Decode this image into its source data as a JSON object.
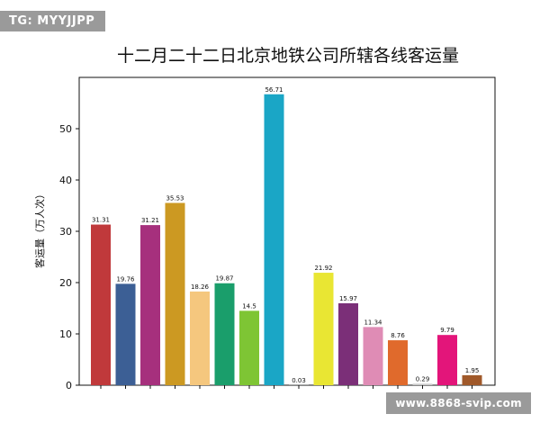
{
  "watermark_top": "TG: MYYJJPP",
  "watermark_bottom": "www.8868-svip.com",
  "chart_data": {
    "type": "bar",
    "title": "十二月二十二日北京地铁公司所辖各线客运量",
    "xlabel": "",
    "ylabel": "客运量（万人次）",
    "ylim": [
      0,
      60
    ],
    "yticks": [
      0,
      10,
      20,
      30,
      40,
      50
    ],
    "grid": false,
    "legend": "none",
    "values": [
      31.31,
      19.76,
      31.21,
      35.53,
      18.26,
      19.87,
      14.5,
      56.71,
      0.03,
      21.92,
      15.97,
      11.34,
      8.76,
      0.29,
      9.79,
      1.95
    ],
    "value_labels": [
      "31.31",
      "19.76",
      "31.21",
      "35.53",
      "18.26",
      "19.87",
      "14.5",
      "56.71",
      "0.03",
      "21.92",
      "15.97",
      "11.34",
      "8.76",
      "0.29",
      "9.79",
      "1.95"
    ],
    "colors": [
      "#c0393b",
      "#3c5f95",
      "#a6307d",
      "#cc9922",
      "#f5c77e",
      "#1a9e6b",
      "#7ec534",
      "#1aa6c6",
      "#dfe0e2",
      "#e9e633",
      "#7b2f78",
      "#df8cb5",
      "#e06a2c",
      "#c9c9c9",
      "#e3157a",
      "#a0592a"
    ]
  }
}
